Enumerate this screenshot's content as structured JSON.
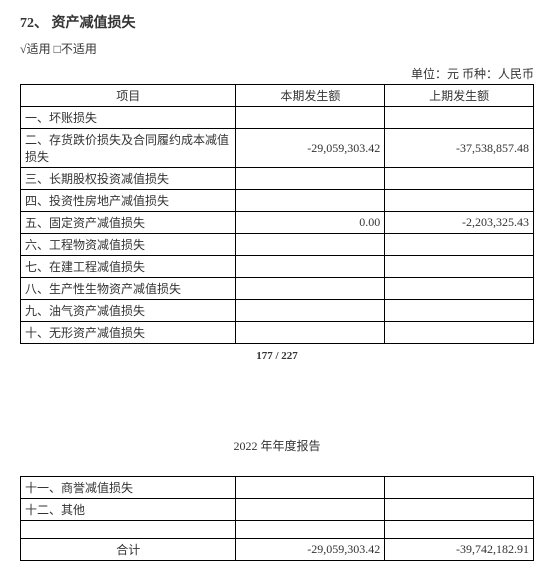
{
  "section": {
    "number": "72、",
    "title": "资产减值损失"
  },
  "applicability": "√适用 □不适用",
  "unit_line": "单位：元  币种：人民币",
  "table1": {
    "headers": [
      "项目",
      "本期发生额",
      "上期发生额"
    ],
    "rows": [
      {
        "label": "一、坏账损失",
        "curr": "",
        "prev": ""
      },
      {
        "label": "二、存货跌价损失及合同履约成本减值损失",
        "curr": "-29,059,303.42",
        "prev": "-37,538,857.48"
      },
      {
        "label": "三、长期股权投资减值损失",
        "curr": "",
        "prev": ""
      },
      {
        "label": "四、投资性房地产减值损失",
        "curr": "",
        "prev": ""
      },
      {
        "label": "五、固定资产减值损失",
        "curr": "0.00",
        "prev": "-2,203,325.43"
      },
      {
        "label": "六、工程物资减值损失",
        "curr": "",
        "prev": ""
      },
      {
        "label": "七、在建工程减值损失",
        "curr": "",
        "prev": ""
      },
      {
        "label": "八、生产性生物资产减值损失",
        "curr": "",
        "prev": ""
      },
      {
        "label": "九、油气资产减值损失",
        "curr": "",
        "prev": ""
      },
      {
        "label": "十、无形资产减值损失",
        "curr": "",
        "prev": ""
      }
    ]
  },
  "page_num": "177 / 227",
  "report_header": "2022 年年度报告",
  "table2": {
    "rows": [
      {
        "label": "十一、商誉减值损失",
        "curr": "",
        "prev": ""
      },
      {
        "label": "十二、其他",
        "curr": "",
        "prev": ""
      },
      {
        "label": "",
        "curr": "",
        "prev": ""
      }
    ],
    "total": {
      "label": "合计",
      "curr": "-29,059,303.42",
      "prev": "-39,742,182.91"
    }
  }
}
